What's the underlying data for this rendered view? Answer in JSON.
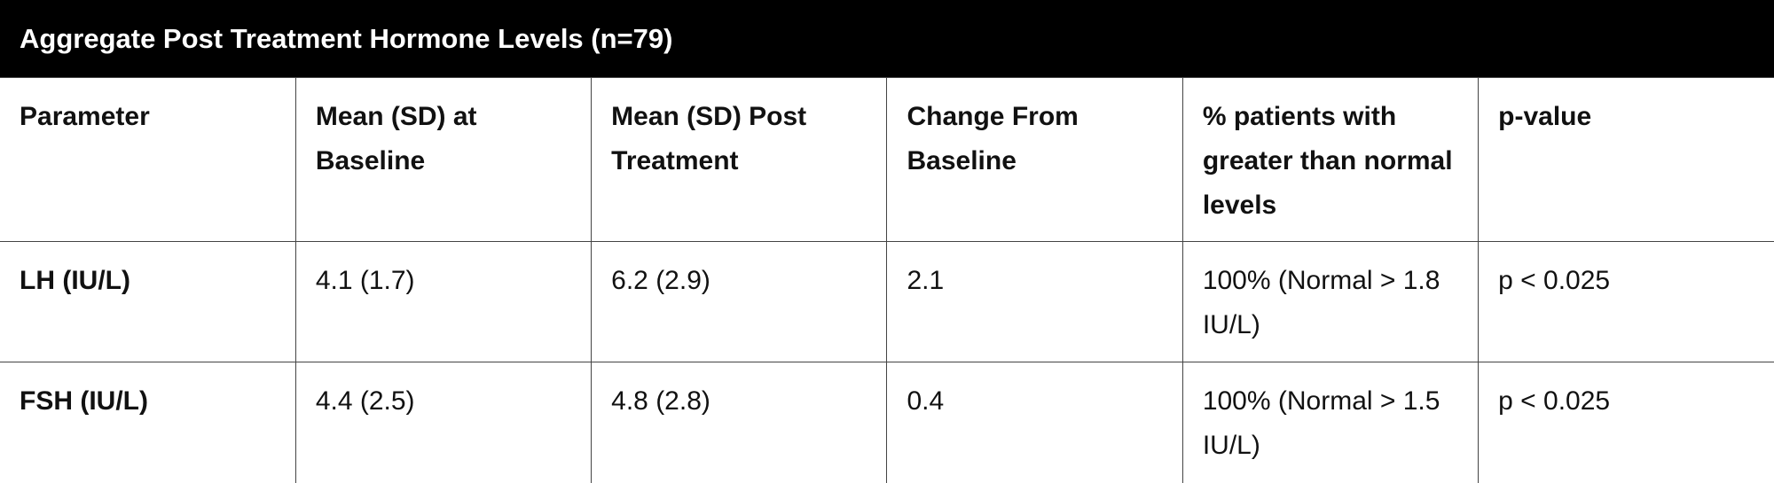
{
  "header": {
    "title": "Aggregate Post Treatment Hormone Levels (n=79)"
  },
  "table": {
    "columns": [
      "Parameter",
      "Mean (SD) at Baseline",
      "Mean (SD) Post Treatment",
      "Change From Baseline",
      "% patients with greater than normal levels",
      "p-value"
    ],
    "rows": [
      [
        "LH (IU/L)",
        "4.1 (1.7)",
        "6.2 (2.9)",
        "2.1",
        "100% (Normal > 1.8 IU/L)",
        "p < 0.025"
      ],
      [
        "FSH (IU/L)",
        "4.4 (2.5)",
        "4.8 (2.8)",
        "0.4",
        "100% (Normal > 1.5 IU/L)",
        "p < 0.025"
      ]
    ]
  }
}
